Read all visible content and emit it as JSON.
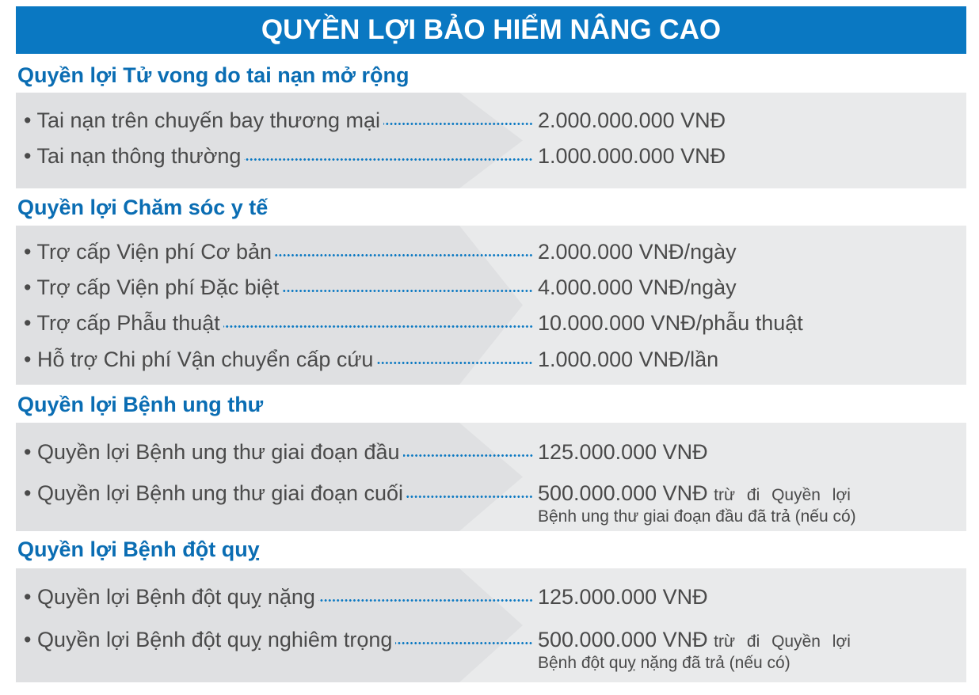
{
  "header": {
    "title": "QUYỀN LỢI BẢO HIỂM NÂNG CAO"
  },
  "colors": {
    "accent": "#0a78c2",
    "panel": "#e9eaeb",
    "text": "#4a4a4a"
  },
  "sections": [
    {
      "title": "Quyền lợi Tử vong do tai nạn mở rộng",
      "items": [
        {
          "label": "• Tai nạn trên chuyến bay thương mại",
          "value": "2.000.000.000 VNĐ"
        },
        {
          "label": "• Tai nạn thông thường",
          "value": "1.000.000.000 VNĐ"
        }
      ]
    },
    {
      "title": "Quyền lợi Chăm sóc y tế",
      "items": [
        {
          "label": "• Trợ cấp Viện phí Cơ bản",
          "value": "2.000.000 VNĐ/ngày"
        },
        {
          "label": "• Trợ cấp Viện phí Đặc biệt",
          "value": "4.000.000 VNĐ/ngày"
        },
        {
          "label": "• Trợ cấp Phẫu thuật",
          "value": "10.000.000 VNĐ/phẫu thuật"
        },
        {
          "label": "• Hỗ trợ Chi phí Vận chuyển cấp cứu",
          "value": "1.000.000 VNĐ/lần"
        }
      ]
    },
    {
      "title": "Quyền lợi Bệnh ung thư",
      "items": [
        {
          "label": "• Quyền lợi Bệnh ung thư giai đoạn đầu",
          "value": "125.000.000 VNĐ"
        },
        {
          "label": "• Quyền lợi Bệnh ung thư giai đoạn cuối",
          "value": "500.000.000  VNĐ",
          "note": "trừ đi Quyền lợi",
          "note2": "Bệnh ung thư giai đoạn đầu đã trả (nếu có)"
        }
      ]
    },
    {
      "title": "Quyền lợi Bệnh đột quỵ",
      "items": [
        {
          "label": "• Quyền lợi Bệnh đột quỵ nặng",
          "value": "125.000.000 VNĐ"
        },
        {
          "label": "• Quyền lợi Bệnh đột quỵ nghiêm trọng",
          "value": "500.000.000  VNĐ",
          "note": "trừ đi Quyền lợi",
          "note2": "Bệnh đột quỵ nặng đã trả (nếu có)"
        }
      ]
    }
  ]
}
